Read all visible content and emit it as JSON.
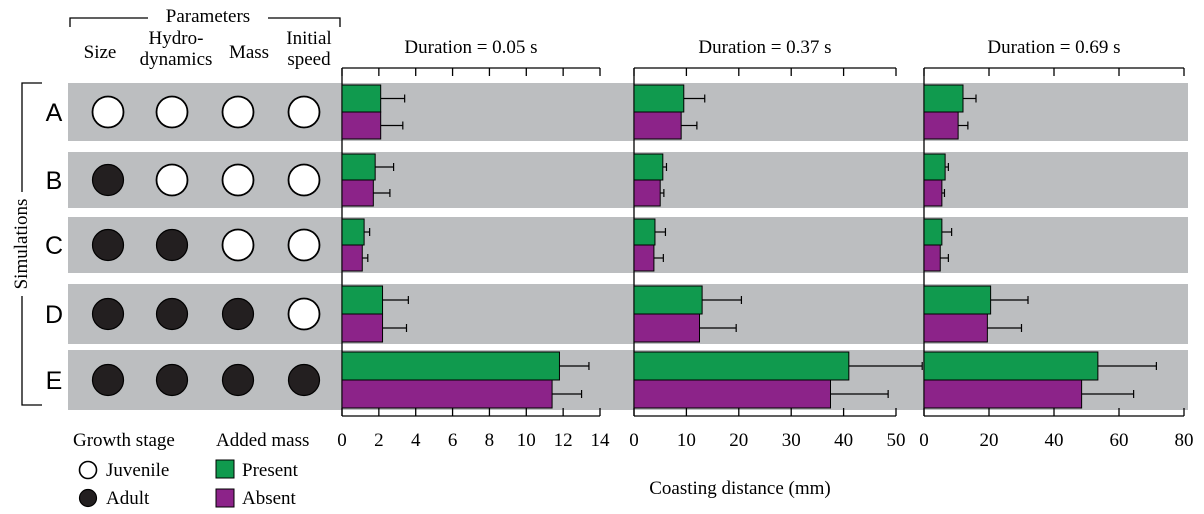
{
  "parameters": {
    "title": "Parameters",
    "columns": [
      [
        "Size"
      ],
      [
        "Hydro-",
        "dynamics"
      ],
      [
        "Mass"
      ],
      [
        "Initial",
        "speed"
      ]
    ]
  },
  "simulations_label": "Simulations",
  "simulations": [
    {
      "label": "A",
      "states": [
        "juvenile",
        "juvenile",
        "juvenile",
        "juvenile"
      ]
    },
    {
      "label": "B",
      "states": [
        "adult",
        "juvenile",
        "juvenile",
        "juvenile"
      ]
    },
    {
      "label": "C",
      "states": [
        "adult",
        "adult",
        "juvenile",
        "juvenile"
      ]
    },
    {
      "label": "D",
      "states": [
        "adult",
        "adult",
        "adult",
        "juvenile"
      ]
    },
    {
      "label": "E",
      "states": [
        "adult",
        "adult",
        "adult",
        "adult"
      ]
    }
  ],
  "legend": {
    "growth_title": "Growth stage",
    "juvenile": "Juvenile",
    "adult": "Adult",
    "mass_title": "Added mass",
    "present": "Present",
    "absent": "Absent"
  },
  "colors": {
    "present": "#109a4e",
    "absent": "#8c2389",
    "band": "#bcbec0",
    "adult_fill": "#231f20"
  },
  "xlabel": "Coasting distance (mm)",
  "chart_data": [
    {
      "type": "bar",
      "title": "Duration = 0.05 s",
      "categories": [
        "A",
        "B",
        "C",
        "D",
        "E"
      ],
      "xlim": [
        0,
        14
      ],
      "ticks": [
        0,
        2,
        4,
        6,
        8,
        10,
        12,
        14
      ],
      "series": [
        {
          "name": "Present",
          "values": [
            2.1,
            1.8,
            1.2,
            2.2,
            11.8
          ],
          "errors": [
            1.3,
            1.0,
            0.3,
            1.4,
            1.6
          ]
        },
        {
          "name": "Absent",
          "values": [
            2.1,
            1.7,
            1.1,
            2.2,
            11.4
          ],
          "errors": [
            1.2,
            0.9,
            0.3,
            1.3,
            1.6
          ]
        }
      ]
    },
    {
      "type": "bar",
      "title": "Duration = 0.37 s",
      "categories": [
        "A",
        "B",
        "C",
        "D",
        "E"
      ],
      "xlim": [
        0,
        50
      ],
      "ticks": [
        0,
        10,
        20,
        30,
        40,
        50
      ],
      "series": [
        {
          "name": "Present",
          "values": [
            9.5,
            5.5,
            4.0,
            13.0,
            41.0
          ],
          "errors": [
            4.0,
            0.7,
            2.0,
            7.5,
            14.0
          ]
        },
        {
          "name": "Absent",
          "values": [
            9.0,
            5.0,
            3.8,
            12.5,
            37.5
          ],
          "errors": [
            3.0,
            0.7,
            1.8,
            7.0,
            11.0
          ]
        }
      ]
    },
    {
      "type": "bar",
      "title": "Duration = 0.69 s",
      "categories": [
        "A",
        "B",
        "C",
        "D",
        "E"
      ],
      "xlim": [
        0,
        80
      ],
      "ticks": [
        0,
        20,
        40,
        60,
        80
      ],
      "series": [
        {
          "name": "Present",
          "values": [
            12.0,
            6.5,
            5.5,
            20.5,
            53.5
          ],
          "errors": [
            4.0,
            1.0,
            3.0,
            11.5,
            18.0
          ]
        },
        {
          "name": "Absent",
          "values": [
            10.5,
            5.5,
            5.0,
            19.5,
            48.5
          ],
          "errors": [
            3.0,
            0.8,
            2.5,
            10.5,
            16.0
          ]
        }
      ]
    }
  ]
}
